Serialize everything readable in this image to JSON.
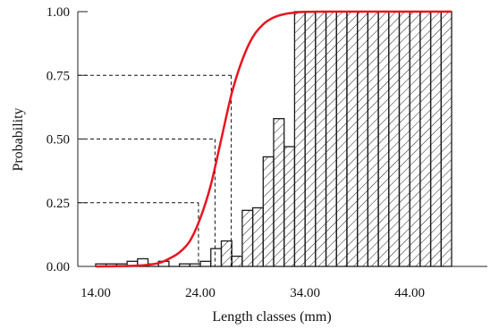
{
  "chart_data": {
    "type": "bar",
    "xlabel": "Length classes (mm)",
    "ylabel": "Probability",
    "xlim": [
      14,
      48
    ],
    "ylim": [
      0,
      1
    ],
    "x_ticks": [
      "14.00",
      "24.00",
      "34.00",
      "44.00"
    ],
    "y_ticks": [
      "0.00",
      "0.25",
      "0.50",
      "0.75",
      "1.00"
    ],
    "class_width": 1,
    "unhatched_until_x": 26,
    "bars": [
      {
        "x": 14,
        "value": 0.01
      },
      {
        "x": 15,
        "value": 0.01
      },
      {
        "x": 16,
        "value": 0.01
      },
      {
        "x": 17,
        "value": 0.02
      },
      {
        "x": 18,
        "value": 0.03
      },
      {
        "x": 19,
        "value": 0.01
      },
      {
        "x": 20,
        "value": 0.02
      },
      {
        "x": 21,
        "value": 0.0
      },
      {
        "x": 22,
        "value": 0.01
      },
      {
        "x": 23,
        "value": 0.01
      },
      {
        "x": 24,
        "value": 0.02
      },
      {
        "x": 25,
        "value": 0.07
      },
      {
        "x": 26,
        "value": 0.1
      },
      {
        "x": 27,
        "value": 0.04
      },
      {
        "x": 28,
        "value": 0.22
      },
      {
        "x": 29,
        "value": 0.23
      },
      {
        "x": 30,
        "value": 0.43
      },
      {
        "x": 31,
        "value": 0.58
      },
      {
        "x": 32,
        "value": 0.47
      },
      {
        "x": 33,
        "value": 1.0
      },
      {
        "x": 34,
        "value": 1.0
      },
      {
        "x": 35,
        "value": 1.0
      },
      {
        "x": 36,
        "value": 1.0
      },
      {
        "x": 37,
        "value": 1.0
      },
      {
        "x": 38,
        "value": 1.0
      },
      {
        "x": 39,
        "value": 1.0
      },
      {
        "x": 40,
        "value": 1.0
      },
      {
        "x": 41,
        "value": 1.0
      },
      {
        "x": 42,
        "value": 1.0
      },
      {
        "x": 43,
        "value": 1.0
      },
      {
        "x": 44,
        "value": 1.0
      },
      {
        "x": 45,
        "value": 1.0
      },
      {
        "x": 46,
        "value": 1.0
      },
      {
        "x": 47,
        "value": 1.0
      }
    ],
    "curve": {
      "color": "#e8141e",
      "x": [
        14,
        18,
        20,
        21,
        22,
        23,
        24,
        25,
        26,
        27,
        28,
        29,
        30,
        31,
        32,
        33,
        34,
        36,
        40,
        48
      ],
      "y": [
        0.0,
        0.003,
        0.013,
        0.03,
        0.055,
        0.1,
        0.19,
        0.32,
        0.5,
        0.68,
        0.81,
        0.9,
        0.95,
        0.977,
        0.99,
        0.996,
        0.999,
        1.0,
        1.0,
        1.0
      ]
    },
    "reference_lines": [
      {
        "probability": 0.25,
        "length": 23.82
      },
      {
        "probability": 0.5,
        "length": 25.4
      },
      {
        "probability": 0.75,
        "length": 26.95
      }
    ],
    "grid": false,
    "legend": "none"
  }
}
